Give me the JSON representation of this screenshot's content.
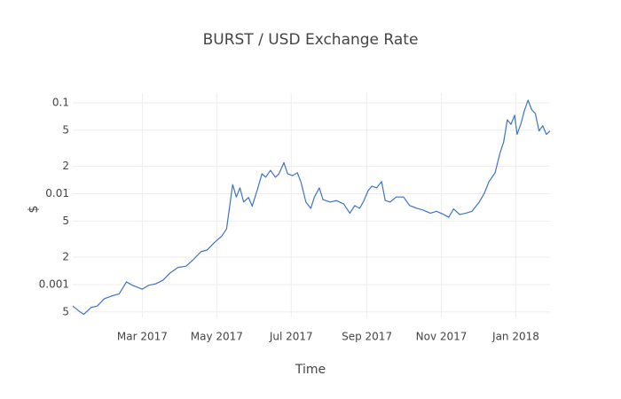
{
  "chart_data": {
    "type": "line",
    "title": "BURST / USD Exchange Rate",
    "x_label": "Time",
    "y_label": "$",
    "log_y": true,
    "grid": true,
    "xlim": [
      "2017-01-03",
      "2018-01-29"
    ],
    "xticks": [
      {
        "value": "2017-03-01",
        "label": "Mar 2017"
      },
      {
        "value": "2017-05-01",
        "label": "May 2017"
      },
      {
        "value": "2017-07-01",
        "label": "Jul 2017"
      },
      {
        "value": "2017-09-01",
        "label": "Sep 2017"
      },
      {
        "value": "2017-11-01",
        "label": "Nov 2017"
      },
      {
        "value": "2018-01-01",
        "label": "Jan 2018"
      }
    ],
    "ylim": [
      0.000435,
      0.128
    ],
    "yticks": [
      0.1,
      {
        "value": 0.05,
        "label": "5"
      },
      {
        "value": 0.02,
        "label": "2"
      },
      0.01,
      {
        "value": 0.005,
        "label": "5"
      },
      {
        "value": 0.002,
        "label": "2"
      },
      0.001,
      {
        "value": 0.0005,
        "label": "5"
      }
    ],
    "series": [
      {
        "name": "BURST / USD",
        "color": "#3f73c4",
        "x": [
          "2017-01-03",
          "2017-01-09",
          "2017-01-12",
          "2017-01-18",
          "2017-01-23",
          "2017-01-29",
          "2017-02-04",
          "2017-02-10",
          "2017-02-16",
          "2017-02-21",
          "2017-03-01",
          "2017-03-06",
          "2017-03-12",
          "2017-03-18",
          "2017-03-24",
          "2017-03-30",
          "2017-04-06",
          "2017-04-12",
          "2017-04-18",
          "2017-04-23",
          "2017-04-29",
          "2017-05-05",
          "2017-05-09",
          "2017-05-14",
          "2017-05-17",
          "2017-05-20",
          "2017-05-23",
          "2017-05-27",
          "2017-05-30",
          "2017-06-03",
          "2017-06-07",
          "2017-06-10",
          "2017-06-14",
          "2017-06-18",
          "2017-06-21",
          "2017-06-25",
          "2017-06-28",
          "2017-07-02",
          "2017-07-06",
          "2017-07-09",
          "2017-07-13",
          "2017-07-17",
          "2017-07-20",
          "2017-07-24",
          "2017-07-27",
          "2017-08-02",
          "2017-08-07",
          "2017-08-13",
          "2017-08-18",
          "2017-08-22",
          "2017-08-26",
          "2017-08-29",
          "2017-09-02",
          "2017-09-05",
          "2017-09-09",
          "2017-09-13",
          "2017-09-16",
          "2017-09-20",
          "2017-09-25",
          "2017-10-01",
          "2017-10-06",
          "2017-10-12",
          "2017-10-17",
          "2017-10-23",
          "2017-10-28",
          "2017-11-03",
          "2017-11-07",
          "2017-11-11",
          "2017-11-16",
          "2017-11-21",
          "2017-11-26",
          "2017-12-02",
          "2017-12-06",
          "2017-12-10",
          "2017-12-15",
          "2017-12-19",
          "2017-12-22",
          "2017-12-25",
          "2017-12-28",
          "2017-12-31",
          "2018-01-02",
          "2018-01-05",
          "2018-01-08",
          "2018-01-11",
          "2018-01-14",
          "2018-01-17",
          "2018-01-20",
          "2018-01-23",
          "2018-01-26",
          "2018-01-29"
        ],
        "values": [
          0.00058,
          0.0005,
          0.00047,
          0.00056,
          0.00058,
          0.0007,
          0.00075,
          0.00079,
          0.00107,
          0.00098,
          0.00089,
          0.00098,
          0.00102,
          0.00112,
          0.00135,
          0.00154,
          0.0016,
          0.0019,
          0.0023,
          0.0024,
          0.0029,
          0.0034,
          0.0041,
          0.0126,
          0.0092,
          0.0116,
          0.0081,
          0.0091,
          0.0073,
          0.0108,
          0.0166,
          0.0152,
          0.0181,
          0.0152,
          0.0166,
          0.022,
          0.0166,
          0.0158,
          0.017,
          0.0134,
          0.0081,
          0.0069,
          0.0092,
          0.0116,
          0.0086,
          0.0081,
          0.0084,
          0.0077,
          0.0061,
          0.0074,
          0.0069,
          0.0081,
          0.0108,
          0.0121,
          0.0116,
          0.0136,
          0.0084,
          0.0081,
          0.0092,
          0.0092,
          0.0074,
          0.0069,
          0.0066,
          0.0061,
          0.0064,
          0.0059,
          0.0055,
          0.0068,
          0.0059,
          0.0061,
          0.0064,
          0.0081,
          0.01,
          0.0136,
          0.017,
          0.028,
          0.037,
          0.065,
          0.058,
          0.073,
          0.045,
          0.058,
          0.082,
          0.107,
          0.084,
          0.076,
          0.049,
          0.056,
          0.045,
          0.049
        ]
      }
    ]
  }
}
